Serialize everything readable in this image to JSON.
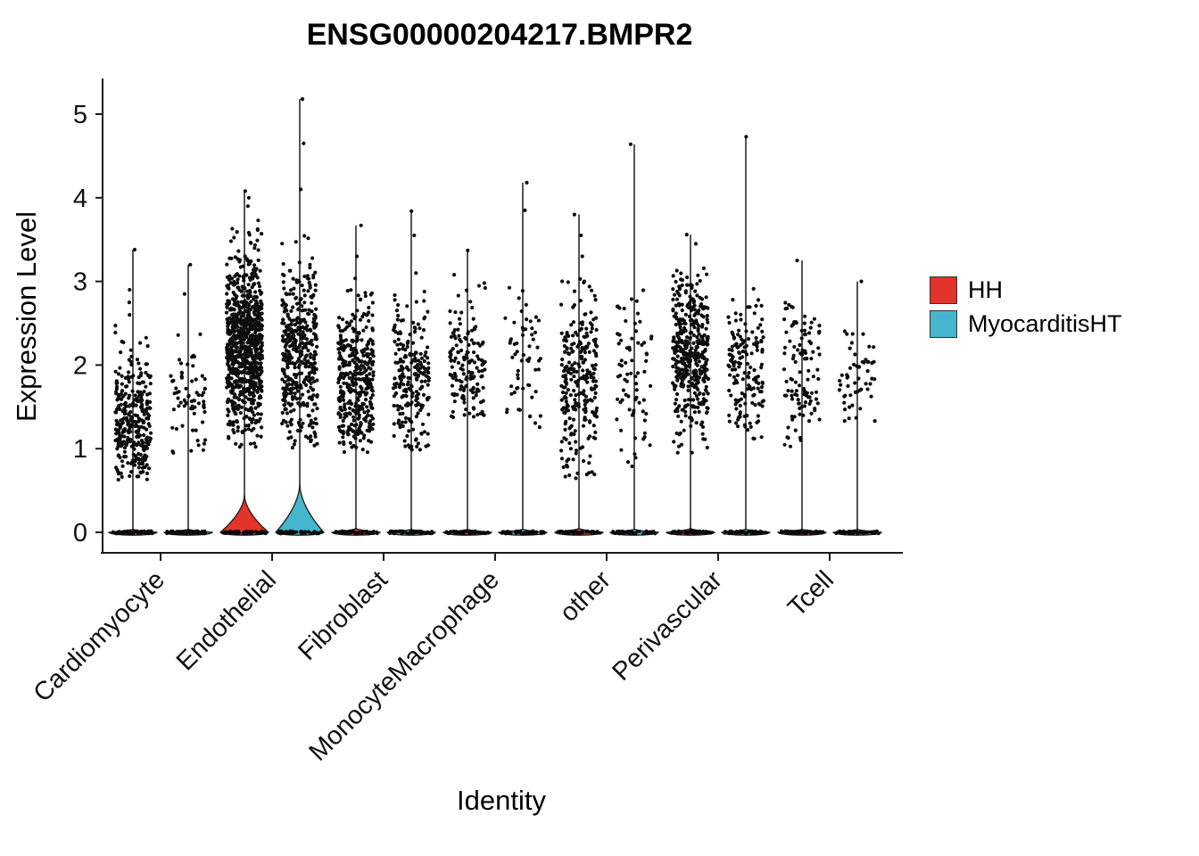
{
  "chart_data": {
    "type": "violin",
    "title": "ENSG00000204217.BMPR2",
    "xlabel": "Identity",
    "ylabel": "Expression Level",
    "ylim": [
      0,
      5.3
    ],
    "yticks": [
      0,
      1,
      2,
      3,
      4,
      5
    ],
    "grid": false,
    "legend_position": "right",
    "categories": [
      "Cardiomyocyte",
      "Endothelial",
      "Fibroblast",
      "MonocyteMacrophage",
      "other",
      "Perivascular",
      "Tcell"
    ],
    "series": [
      {
        "name": "HH",
        "color": "#E2342B",
        "violins": [
          {
            "max": 3.38,
            "bump": 0.04,
            "n": 320,
            "mean": 1.25,
            "sd": 0.42,
            "lo": 0.62,
            "hi": 2.5,
            "outliers": [
              2.6,
              2.75,
              2.9,
              3.38
            ]
          },
          {
            "max": 4.08,
            "bump": 0.45,
            "n": 850,
            "mean": 2.2,
            "sd": 0.58,
            "lo": 1.0,
            "hi": 3.75,
            "outliers": [
              3.9,
              4.0,
              4.08
            ]
          },
          {
            "max": 3.67,
            "bump": 0.05,
            "n": 380,
            "mean": 1.8,
            "sd": 0.5,
            "lo": 0.95,
            "hi": 3.05,
            "outliers": [
              3.3,
              3.67
            ]
          },
          {
            "max": 3.37,
            "bump": 0.04,
            "n": 150,
            "mean": 2.05,
            "sd": 0.45,
            "lo": 1.35,
            "hi": 3.1,
            "outliers": [
              3.37
            ]
          },
          {
            "max": 3.8,
            "bump": 0.05,
            "n": 270,
            "mean": 1.8,
            "sd": 0.6,
            "lo": 0.62,
            "hi": 3.05,
            "outliers": [
              3.3,
              3.55,
              3.8
            ]
          },
          {
            "max": 3.56,
            "bump": 0.05,
            "n": 420,
            "mean": 2.15,
            "sd": 0.5,
            "lo": 0.9,
            "hi": 3.25,
            "outliers": [
              3.45,
              3.56
            ]
          },
          {
            "max": 3.25,
            "bump": 0.04,
            "n": 110,
            "mean": 1.95,
            "sd": 0.55,
            "lo": 1.0,
            "hi": 3.0,
            "outliers": [
              3.25
            ]
          }
        ]
      },
      {
        "name": "MyocarditisHT",
        "color": "#45B6CE",
        "violins": [
          {
            "max": 3.2,
            "bump": 0.04,
            "n": 70,
            "mean": 1.6,
            "sd": 0.42,
            "lo": 0.95,
            "hi": 2.45,
            "outliers": [
              2.85,
              3.2
            ]
          },
          {
            "max": 5.18,
            "bump": 0.58,
            "n": 430,
            "mean": 2.15,
            "sd": 0.58,
            "lo": 1.0,
            "hi": 3.6,
            "outliers": [
              4.1,
              4.65,
              5.18
            ]
          },
          {
            "max": 3.84,
            "bump": 0.04,
            "n": 220,
            "mean": 1.8,
            "sd": 0.5,
            "lo": 0.95,
            "hi": 2.9,
            "outliers": [
              3.1,
              3.55,
              3.84
            ]
          },
          {
            "max": 4.18,
            "bump": 0.04,
            "n": 60,
            "mean": 2.0,
            "sd": 0.5,
            "lo": 1.25,
            "hi": 3.0,
            "outliers": [
              3.85,
              4.18
            ]
          },
          {
            "max": 4.64,
            "bump": 0.04,
            "n": 75,
            "mean": 1.85,
            "sd": 0.55,
            "lo": 0.7,
            "hi": 3.0,
            "outliers": [
              4.64
            ]
          },
          {
            "max": 4.73,
            "bump": 0.04,
            "n": 160,
            "mean": 1.9,
            "sd": 0.45,
            "lo": 1.1,
            "hi": 2.95,
            "outliers": [
              4.73
            ]
          },
          {
            "max": 3.0,
            "bump": 0.04,
            "n": 55,
            "mean": 1.8,
            "sd": 0.4,
            "lo": 1.2,
            "hi": 2.6,
            "outliers": [
              3.0
            ]
          }
        ]
      }
    ]
  }
}
